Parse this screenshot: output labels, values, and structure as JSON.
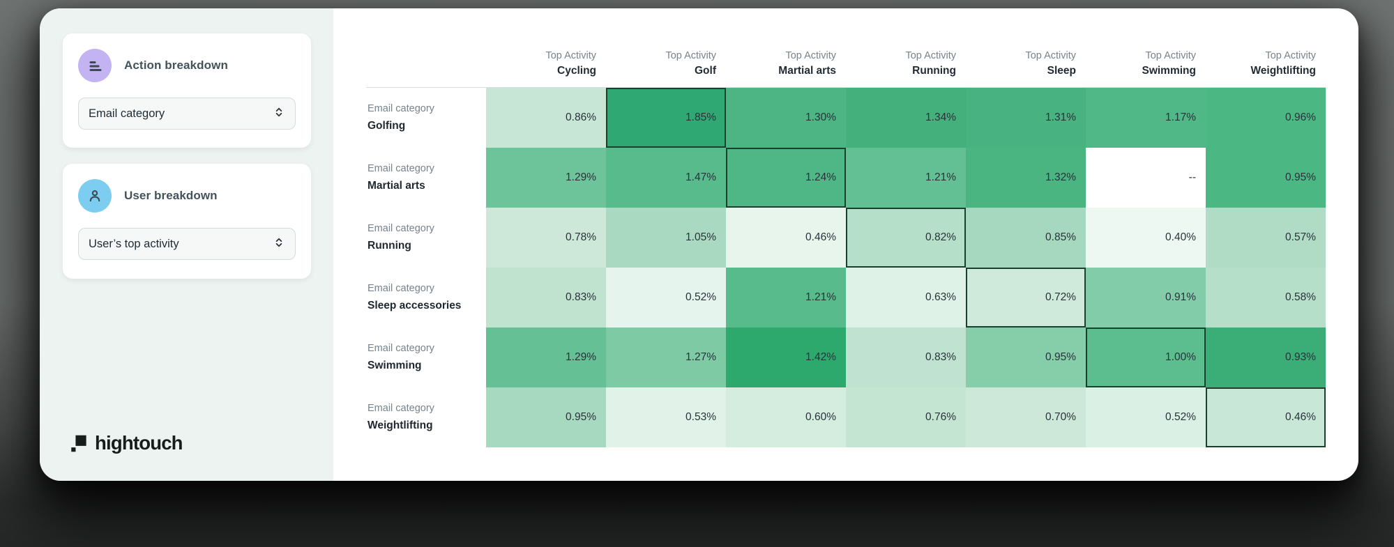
{
  "sidebar": {
    "action_breakdown": {
      "title": "Action breakdown",
      "icon": "bars-breakdown-icon",
      "dropdown_value": "Email category"
    },
    "user_breakdown": {
      "title": "User breakdown",
      "icon": "person-icon",
      "dropdown_value": "User’s top activity"
    },
    "logo_text": "hightouch"
  },
  "chart_data": {
    "type": "heatmap",
    "column_header_prefix": "Top Activity",
    "row_header_prefix": "Email category",
    "columns": [
      "Cycling",
      "Golf",
      "Martial arts",
      "Running",
      "Sleep",
      "Swimming",
      "Weightlifting"
    ],
    "rows": [
      "Golfing",
      "Martial arts",
      "Running",
      "Sleep accessories",
      "Swimming",
      "Weightlifting"
    ],
    "values": [
      [
        0.86,
        1.85,
        1.3,
        1.34,
        1.31,
        1.17,
        0.96
      ],
      [
        1.29,
        1.47,
        1.24,
        1.21,
        1.32,
        null,
        0.95
      ],
      [
        0.78,
        1.05,
        0.46,
        0.82,
        0.85,
        0.4,
        0.57
      ],
      [
        0.83,
        0.52,
        1.21,
        0.63,
        0.72,
        0.91,
        0.58
      ],
      [
        1.29,
        1.27,
        1.42,
        0.83,
        0.95,
        1.0,
        0.93
      ],
      [
        0.95,
        0.53,
        0.6,
        0.76,
        0.7,
        0.52,
        0.46
      ]
    ],
    "value_suffix": "%",
    "null_display": "--",
    "highlighted_cells": [
      [
        0,
        1
      ],
      [
        1,
        2
      ],
      [
        2,
        3
      ],
      [
        3,
        4
      ],
      [
        4,
        5
      ],
      [
        5,
        6
      ]
    ],
    "cell_colors": [
      [
        "#c8e6d5",
        "#2fa873",
        "#4cb583",
        "#44b17d",
        "#48b380",
        "#4fb886",
        "#4bb884"
      ],
      [
        "#6dc49b",
        "#57bb8c",
        "#4fb785",
        "#63c095",
        "#4ab581",
        "#ffffff",
        "#4bb884"
      ],
      [
        "#cde8d8",
        "#a9dac1",
        "#e7f5ed",
        "#b5dfc9",
        "#a6d8bf",
        "#edf8f2",
        "#b0dcc6"
      ],
      [
        "#c0e3d0",
        "#e5f4ec",
        "#58bb8b",
        "#dff2e8",
        "#cfe9da",
        "#83cca9",
        "#b5dfc9"
      ],
      [
        "#65c095",
        "#7ecaa5",
        "#2ea96e",
        "#bfe3d0",
        "#86cdaa",
        "#5cbd8e",
        "#3bad76"
      ],
      [
        "#a7d9c0",
        "#e1f3e9",
        "#d5edde",
        "#c5e5d3",
        "#cde8d8",
        "#daf0e4",
        "#c9e7d6"
      ]
    ]
  },
  "colors": {
    "highlight_border": "#17402d",
    "sidebar_bg": "#edf3f0",
    "action_icon_bg": "#c3b3f2",
    "user_icon_bg": "#7ccdf0",
    "header_text_gray": "#78828c",
    "header_text_dark": "#222b33"
  }
}
